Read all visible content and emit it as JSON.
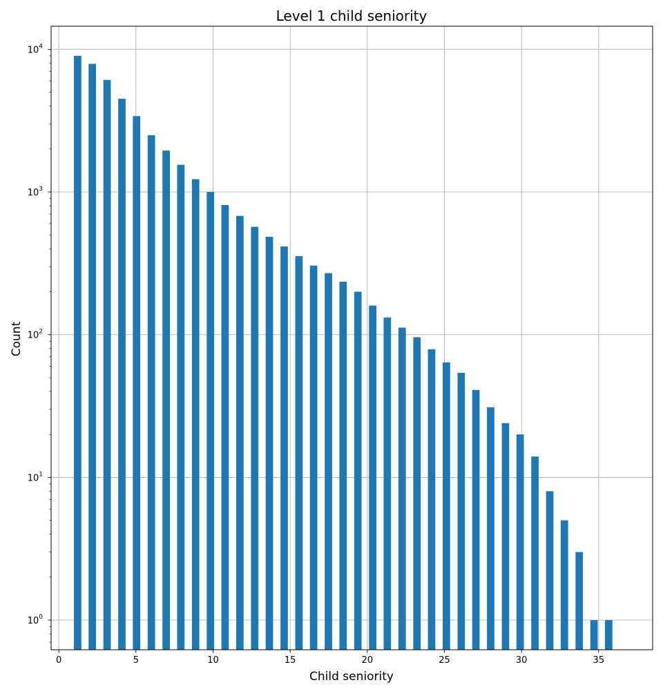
{
  "chart_data": {
    "type": "bar",
    "title": "Level 1 child seniority",
    "xlabel": "Child seniority",
    "ylabel": "Count",
    "yscale": "log",
    "xlim": [
      -0.5,
      38.5
    ],
    "ylim": [
      0.62,
      14500
    ],
    "grid": true,
    "x": [
      1.22,
      2.17,
      3.13,
      4.09,
      5.04,
      6.0,
      6.96,
      7.91,
      8.87,
      9.83,
      10.78,
      11.74,
      12.7,
      13.65,
      14.61,
      15.57,
      16.52,
      17.48,
      18.43,
      19.39,
      20.35,
      21.3,
      22.26,
      23.22,
      24.17,
      25.13,
      26.09,
      27.04,
      28.0,
      28.96,
      29.91,
      30.87,
      31.83,
      32.78,
      33.74,
      34.7,
      35.65
    ],
    "values": [
      9000,
      7900,
      6100,
      4500,
      3400,
      2500,
      1950,
      1550,
      1230,
      1000,
      810,
      680,
      570,
      485,
      415,
      355,
      305,
      270,
      235,
      200,
      160,
      132,
      112,
      96,
      79,
      64,
      54,
      41,
      31,
      24,
      20,
      14,
      8,
      5,
      3,
      1,
      1
    ],
    "bar_width": 0.48,
    "color": "#1f77b4",
    "x_ticks": [
      0,
      5,
      10,
      15,
      20,
      25,
      30,
      35
    ],
    "y_ticks": [
      1,
      10,
      100,
      1000,
      10000
    ],
    "y_tick_labels": [
      {
        "base": "10",
        "exp": "0"
      },
      {
        "base": "10",
        "exp": "1"
      },
      {
        "base": "10",
        "exp": "2"
      },
      {
        "base": "10",
        "exp": "3"
      },
      {
        "base": "10",
        "exp": "4"
      }
    ]
  }
}
